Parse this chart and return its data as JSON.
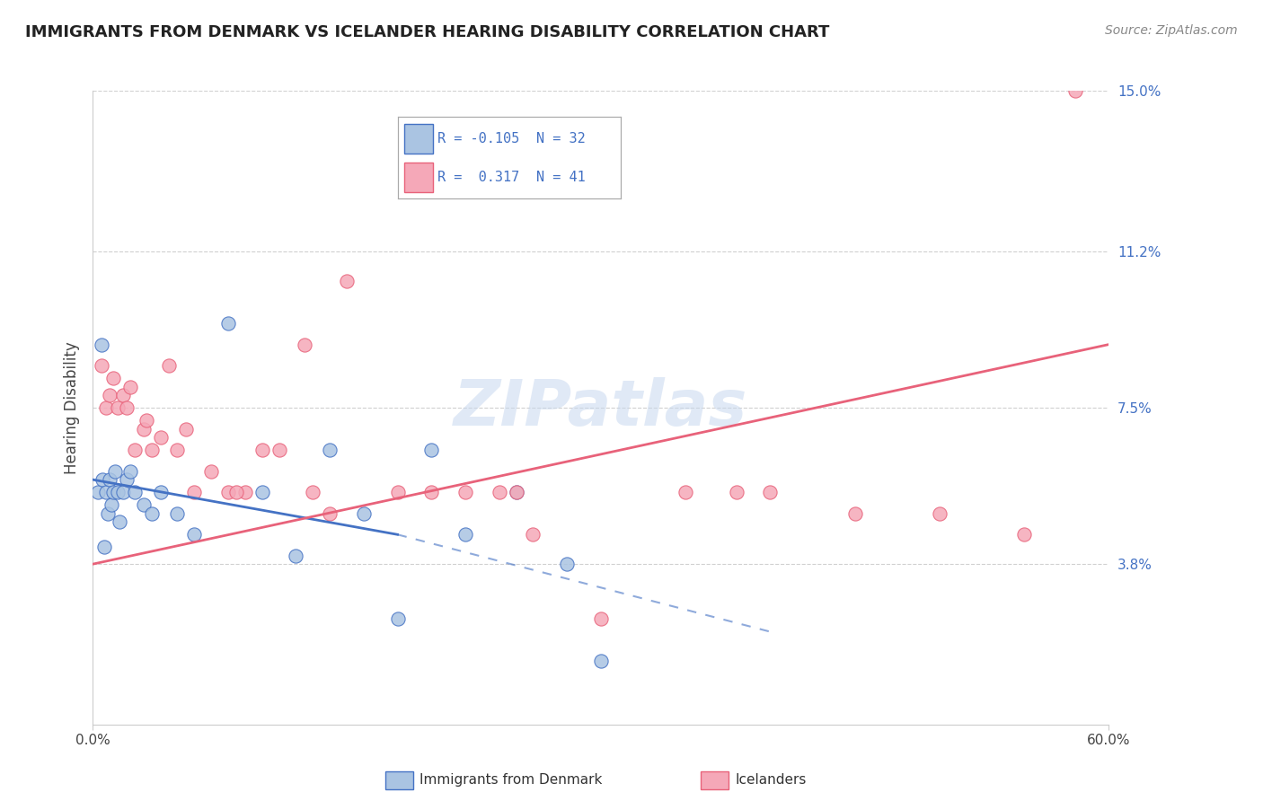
{
  "title": "IMMIGRANTS FROM DENMARK VS ICELANDER HEARING DISABILITY CORRELATION CHART",
  "source": "Source: ZipAtlas.com",
  "ylabel": "Hearing Disability",
  "x_min": 0.0,
  "x_max": 60.0,
  "y_min": 0.0,
  "y_max": 15.0,
  "ytick_vals": [
    3.8,
    7.5,
    11.2,
    15.0
  ],
  "ytick_labels": [
    "3.8%",
    "7.5%",
    "11.2%",
    "15.0%"
  ],
  "color_denmark": "#aac4e2",
  "color_icelander": "#f5a8b8",
  "color_trendline_denmark": "#4472c4",
  "color_trendline_icelander": "#e8627a",
  "color_axis_labels": "#4472c4",
  "watermark": "ZIPatlas",
  "denmark_x": [
    0.3,
    0.5,
    0.6,
    0.7,
    0.8,
    0.9,
    1.0,
    1.1,
    1.2,
    1.3,
    1.5,
    1.6,
    1.8,
    2.0,
    2.2,
    2.5,
    3.0,
    3.5,
    4.0,
    5.0,
    6.0,
    8.0,
    10.0,
    12.0,
    14.0,
    16.0,
    18.0,
    20.0,
    22.0,
    25.0,
    28.0,
    30.0
  ],
  "denmark_y": [
    5.5,
    9.0,
    5.8,
    4.2,
    5.5,
    5.0,
    5.8,
    5.2,
    5.5,
    6.0,
    5.5,
    4.8,
    5.5,
    5.8,
    6.0,
    5.5,
    5.2,
    5.0,
    5.5,
    5.0,
    4.5,
    9.5,
    5.5,
    4.0,
    6.5,
    5.0,
    2.5,
    6.5,
    4.5,
    5.5,
    3.8,
    1.5
  ],
  "icelander_x": [
    0.5,
    0.8,
    1.0,
    1.2,
    1.5,
    1.8,
    2.0,
    2.2,
    2.5,
    3.0,
    3.2,
    3.5,
    4.0,
    4.5,
    5.0,
    5.5,
    6.0,
    7.0,
    8.0,
    9.0,
    10.0,
    11.0,
    12.5,
    15.0,
    18.0,
    20.0,
    22.0,
    24.0,
    25.0,
    26.0,
    30.0,
    35.0,
    40.0,
    45.0,
    50.0,
    55.0,
    58.0,
    38.0,
    14.0,
    8.5,
    13.0
  ],
  "icelander_y": [
    8.5,
    7.5,
    7.8,
    8.2,
    7.5,
    7.8,
    7.5,
    8.0,
    6.5,
    7.0,
    7.2,
    6.5,
    6.8,
    8.5,
    6.5,
    7.0,
    5.5,
    6.0,
    5.5,
    5.5,
    6.5,
    6.5,
    9.0,
    10.5,
    5.5,
    5.5,
    5.5,
    5.5,
    5.5,
    4.5,
    2.5,
    5.5,
    5.5,
    5.0,
    5.0,
    4.5,
    15.0,
    5.5,
    5.0,
    5.5,
    5.5
  ],
  "denmark_trend_start_x": 0.0,
  "denmark_trend_start_y": 5.8,
  "denmark_trend_end_x": 18.0,
  "denmark_trend_end_y": 4.5,
  "denmark_dash_start_x": 18.0,
  "denmark_dash_start_y": 4.5,
  "denmark_dash_end_x": 40.0,
  "denmark_dash_end_y": 2.2,
  "icelander_trend_start_x": 0.0,
  "icelander_trend_start_y": 3.8,
  "icelander_trend_end_x": 60.0,
  "icelander_trend_end_y": 9.0
}
